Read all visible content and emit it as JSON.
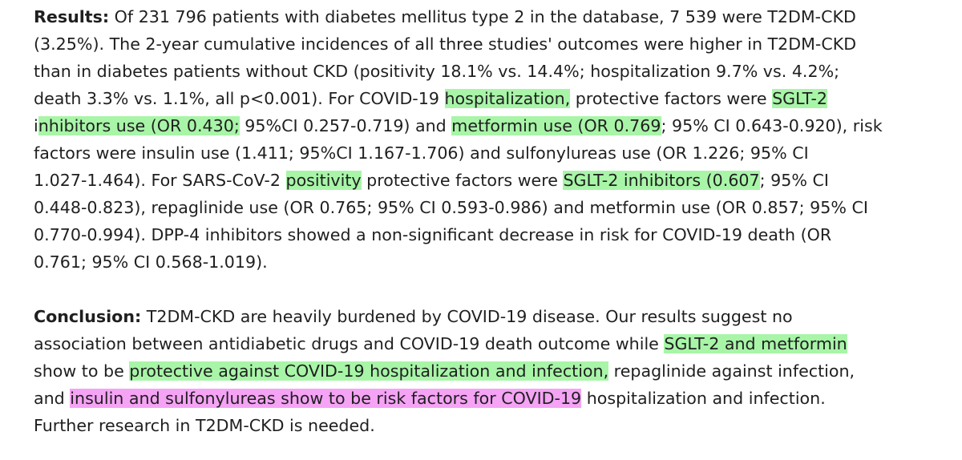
{
  "results": {
    "heading": "Results:",
    "lines": [
      {
        "segments": [
          {
            "text": " Of 231 796 patients with diabetes mellitus type 2 in the database, 7 539 were T2DM-CKD"
          }
        ]
      },
      {
        "segments": [
          {
            "text": "(3.25%). The 2-year cumulative incidences of all three studies' outcomes were higher in T2DM-CKD"
          }
        ]
      },
      {
        "segments": [
          {
            "text": "than in diabetes patients without CKD (positivity 18.1% vs. 14.4%; hospitalization 9.7% vs. 4.2%;"
          }
        ]
      },
      {
        "segments": [
          {
            "text": "death 3.3% vs. 1.1%, all p<0.001). For COVID-19 "
          },
          {
            "text": "hospitalization,",
            "highlight": "green"
          },
          {
            "text": " protective factors were "
          },
          {
            "text": "SGLT-2",
            "highlight": "green"
          }
        ]
      },
      {
        "segments": [
          {
            "text": "i"
          },
          {
            "text": "nhibitors use (OR 0.430;",
            "highlight": "green"
          },
          {
            "text": " 95%CI 0.257-0.719) and "
          },
          {
            "text": "metformin use (OR 0.769",
            "highlight": "green"
          },
          {
            "text": "; 95% CI 0.643-0.920), risk"
          }
        ]
      },
      {
        "segments": [
          {
            "text": "factors were insulin use (1.411; 95%CI 1.167-1.706) and sulfonylureas use (OR 1.226; 95% CI"
          }
        ]
      },
      {
        "segments": [
          {
            "text": "1.027-1.464). For SARS-CoV-2 "
          },
          {
            "text": "positivity",
            "highlight": "green"
          },
          {
            "text": " protective factors were "
          },
          {
            "text": "SGLT-2 inhibitors (0.607",
            "highlight": "green"
          },
          {
            "text": "; 95% CI"
          }
        ]
      },
      {
        "segments": [
          {
            "text": "0.448-0.823), repaglinide use (OR 0.765; 95% CI 0.593-0.986) and metformin use (OR 0.857; 95% CI"
          }
        ]
      },
      {
        "segments": [
          {
            "text": "0.770-0.994). DPP-4 inhibitors showed a non-significant decrease in risk for COVID-19 death (OR"
          }
        ]
      },
      {
        "segments": [
          {
            "text": "0.761; 95% CI 0.568-1.019)."
          }
        ]
      }
    ]
  },
  "conclusion": {
    "heading": "Conclusion:",
    "lines": [
      {
        "segments": [
          {
            "text": " T2DM-CKD are heavily burdened by COVID-19 disease. Our results suggest no"
          }
        ]
      },
      {
        "segments": [
          {
            "text": "association between antidiabetic drugs and COVID-19 death outcome while "
          },
          {
            "text": "SGLT-2 and metformin",
            "highlight": "green"
          }
        ]
      },
      {
        "segments": [
          {
            "text": "show to be "
          },
          {
            "text": "protective against COVID-19 hospitalization and infection,",
            "highlight": "green"
          },
          {
            "text": " repaglinide against infection,"
          }
        ]
      },
      {
        "segments": [
          {
            "text": "and "
          },
          {
            "text": "insulin and sulfonylureas show to be risk factors for COVID-19",
            "highlight": "pink"
          },
          {
            "text": " hospitalization and infection."
          }
        ]
      },
      {
        "segments": [
          {
            "text": "Further research in T2DM-CKD is needed."
          }
        ]
      }
    ]
  },
  "colors": {
    "text": "#1f1f1f",
    "highlight_green": "#a8f5a8",
    "highlight_pink": "#f5a3f5",
    "background": "#ffffff"
  }
}
